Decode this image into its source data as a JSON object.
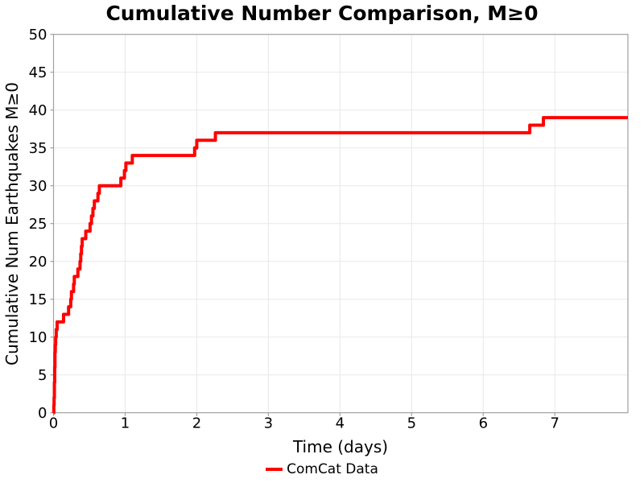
{
  "chart_data": {
    "type": "line",
    "title": "Cumulative Number Comparison, M≥0",
    "xlabel": "Time (days)",
    "ylabel": "Cumulative Num Earthquakes M≥0",
    "xlim": [
      0,
      8.02
    ],
    "ylim": [
      0,
      50
    ],
    "xticks": [
      0,
      1,
      2,
      3,
      4,
      5,
      6,
      7
    ],
    "yticks": [
      0,
      5,
      10,
      15,
      20,
      25,
      30,
      35,
      40,
      45,
      50
    ],
    "grid": true,
    "legend_position": "bottom-center",
    "style": {
      "grid_color": "#e8e8e8",
      "spine_color": "#a0a0a0",
      "tick_label_color": "#000000",
      "background": "#ffffff"
    },
    "series": [
      {
        "name": "ComCat Data",
        "color": "#ff0000",
        "line_width": 4,
        "step": "post",
        "points": [
          [
            0,
            0
          ],
          [
            0.004,
            1
          ],
          [
            0.008,
            2
          ],
          [
            0.012,
            4
          ],
          [
            0.016,
            6
          ],
          [
            0.02,
            8
          ],
          [
            0.025,
            9
          ],
          [
            0.03,
            10
          ],
          [
            0.038,
            11
          ],
          [
            0.05,
            12
          ],
          [
            0.14,
            13
          ],
          [
            0.21,
            14
          ],
          [
            0.24,
            15
          ],
          [
            0.25,
            16
          ],
          [
            0.28,
            17
          ],
          [
            0.29,
            18
          ],
          [
            0.34,
            19
          ],
          [
            0.37,
            20
          ],
          [
            0.38,
            21
          ],
          [
            0.39,
            22
          ],
          [
            0.4,
            23
          ],
          [
            0.45,
            24
          ],
          [
            0.51,
            25
          ],
          [
            0.53,
            26
          ],
          [
            0.55,
            27
          ],
          [
            0.57,
            28
          ],
          [
            0.62,
            29
          ],
          [
            0.64,
            30
          ],
          [
            0.94,
            31
          ],
          [
            0.99,
            32
          ],
          [
            1.01,
            33
          ],
          [
            1.1,
            34
          ],
          [
            1.97,
            35
          ],
          [
            2.0,
            36
          ],
          [
            2.26,
            37
          ],
          [
            6.65,
            38
          ],
          [
            6.84,
            39
          ]
        ]
      }
    ]
  }
}
